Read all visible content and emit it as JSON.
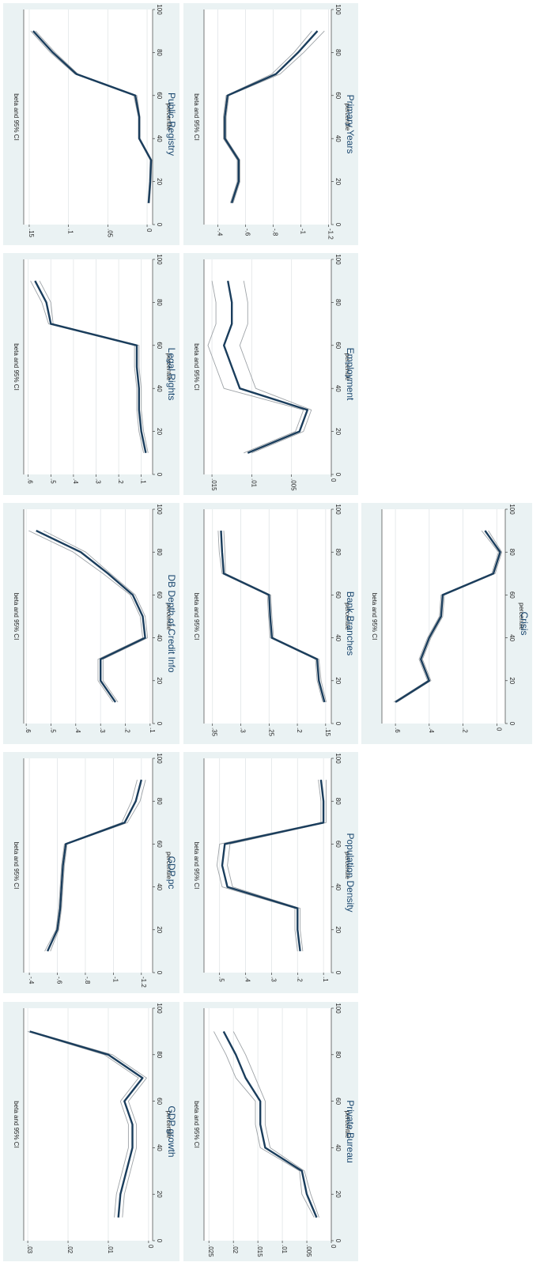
{
  "chart_data": [
    {
      "type": "line",
      "title": "GDP growth",
      "xlabel": "percentile",
      "ylabel": "beta and 95% CI",
      "x": [
        10,
        20,
        30,
        40,
        50,
        60,
        70,
        80,
        90
      ],
      "xlim": [
        0,
        100
      ],
      "xticks": [
        0,
        20,
        40,
        60,
        80,
        100
      ],
      "ylim": [
        -0.001,
        0.031
      ],
      "yticks": [
        {
          "v": 0,
          "label": "0"
        },
        {
          "v": 0.01,
          "label": ".01"
        },
        {
          "v": 0.02,
          "label": ".02"
        },
        {
          "v": 0.03,
          "label": ".03"
        }
      ],
      "series": [
        {
          "role": "estimate",
          "values": [
            0.0075,
            0.007,
            0.0055,
            0.004,
            0.004,
            0.006,
            0.0015,
            0.01,
            0.0295
          ]
        },
        {
          "role": "ci_upper",
          "values": [
            0.0085,
            0.008,
            0.0065,
            0.005,
            0.005,
            0.007,
            0.0025,
            0.011,
            0.03
          ]
        },
        {
          "role": "ci_lower",
          "values": [
            0.0065,
            0.006,
            0.0045,
            0.003,
            0.003,
            0.005,
            0.0005,
            0.009,
            0.029
          ]
        }
      ]
    },
    {
      "type": "line",
      "title": "GDP pc",
      "xlabel": "percentile",
      "ylabel": "beta and 95% CI",
      "x": [
        10,
        20,
        30,
        40,
        50,
        60,
        70,
        80,
        90
      ],
      "xlim": [
        0,
        100
      ],
      "xticks": [
        0,
        20,
        40,
        60,
        80,
        100
      ],
      "ylim": [
        -1.28,
        -0.36
      ],
      "yticks": [
        {
          "v": -0.4,
          "label": "-.4"
        },
        {
          "v": -0.6,
          "label": "-.6"
        },
        {
          "v": -0.8,
          "label": "-.8"
        },
        {
          "v": -1,
          "label": "-1"
        },
        {
          "v": -1.2,
          "label": "-1.2"
        }
      ],
      "series": [
        {
          "role": "estimate",
          "values": [
            -0.53,
            -0.6,
            -0.62,
            -0.63,
            -0.64,
            -0.66,
            -1.08,
            -1.16,
            -1.2
          ]
        },
        {
          "role": "ci_upper",
          "values": [
            -0.51,
            -0.59,
            -0.61,
            -0.62,
            -0.63,
            -0.65,
            -1.06,
            -1.13,
            -1.17
          ]
        },
        {
          "role": "ci_lower",
          "values": [
            -0.55,
            -0.61,
            -0.63,
            -0.64,
            -0.65,
            -0.67,
            -1.1,
            -1.19,
            -1.23
          ]
        }
      ]
    },
    {
      "type": "line",
      "title": "DB Depth of Credit Info",
      "xlabel": "percentile",
      "ylabel": "beta and 95% CI",
      "x": [
        10,
        20,
        30,
        40,
        50,
        60,
        70,
        80,
        90
      ],
      "xlim": [
        0,
        100
      ],
      "xticks": [
        0,
        20,
        40,
        60,
        80,
        100
      ],
      "ylim": [
        0.09,
        0.61
      ],
      "yticks": [
        {
          "v": 0.1,
          "label": ".1"
        },
        {
          "v": 0.2,
          "label": ".2"
        },
        {
          "v": 0.3,
          "label": ".3"
        },
        {
          "v": 0.4,
          "label": ".4"
        },
        {
          "v": 0.5,
          "label": ".5"
        },
        {
          "v": 0.6,
          "label": ".6"
        }
      ],
      "series": [
        {
          "role": "estimate",
          "values": [
            0.24,
            0.3,
            0.3,
            0.12,
            0.13,
            0.17,
            0.27,
            0.38,
            0.56
          ]
        },
        {
          "role": "ci_upper",
          "values": [
            0.25,
            0.31,
            0.31,
            0.13,
            0.14,
            0.18,
            0.29,
            0.41,
            0.59
          ]
        },
        {
          "role": "ci_lower",
          "values": [
            0.23,
            0.29,
            0.29,
            0.11,
            0.12,
            0.16,
            0.26,
            0.36,
            0.53
          ]
        }
      ]
    },
    {
      "type": "line",
      "title": "Legal Rights",
      "xlabel": "percentile",
      "ylabel": "beta and 95% CI",
      "x": [
        10,
        20,
        30,
        40,
        50,
        60,
        70,
        80,
        90
      ],
      "xlim": [
        0,
        100
      ],
      "xticks": [
        0,
        20,
        40,
        60,
        80,
        100
      ],
      "ylim": [
        0.05,
        0.62
      ],
      "yticks": [
        {
          "v": 0.1,
          "label": ".1"
        },
        {
          "v": 0.2,
          "label": ".2"
        },
        {
          "v": 0.3,
          "label": ".3"
        },
        {
          "v": 0.4,
          "label": ".4"
        },
        {
          "v": 0.5,
          "label": ".5"
        },
        {
          "v": 0.6,
          "label": ".6"
        }
      ],
      "series": [
        {
          "role": "estimate",
          "values": [
            0.08,
            0.1,
            0.11,
            0.11,
            0.12,
            0.12,
            0.5,
            0.52,
            0.57
          ]
        },
        {
          "role": "ci_upper",
          "values": [
            0.09,
            0.11,
            0.12,
            0.12,
            0.13,
            0.13,
            0.51,
            0.54,
            0.59
          ]
        },
        {
          "role": "ci_lower",
          "values": [
            0.07,
            0.09,
            0.1,
            0.1,
            0.11,
            0.11,
            0.49,
            0.5,
            0.55
          ]
        }
      ]
    },
    {
      "type": "line",
      "title": "Public Registry",
      "xlabel": "percentile",
      "ylabel": "beta and 95% CI",
      "x": [
        10,
        20,
        30,
        40,
        50,
        60,
        70,
        80,
        90
      ],
      "xlim": [
        0,
        100
      ],
      "xticks": [
        0,
        20,
        40,
        60,
        80,
        100
      ],
      "ylim": [
        -0.007,
        0.157
      ],
      "yticks": [
        {
          "v": 0,
          "label": "0"
        },
        {
          "v": 0.05,
          "label": ".05"
        },
        {
          "v": 0.1,
          "label": ".1"
        },
        {
          "v": 0.15,
          "label": ".15"
        }
      ],
      "series": [
        {
          "role": "estimate",
          "values": [
            -0.002,
            -0.004,
            -0.005,
            0.01,
            0.01,
            0.015,
            0.09,
            0.12,
            0.145
          ]
        },
        {
          "role": "ci_upper",
          "values": [
            -0.001,
            -0.003,
            -0.004,
            0.011,
            0.011,
            0.017,
            0.092,
            0.123,
            0.148
          ]
        },
        {
          "role": "ci_lower",
          "values": [
            -0.003,
            -0.005,
            -0.006,
            0.009,
            0.009,
            0.013,
            0.088,
            0.117,
            0.142
          ]
        }
      ]
    },
    {
      "type": "line",
      "title": "Private Bureau",
      "xlabel": "percentile",
      "ylabel": "beta and 95% CI",
      "x": [
        10,
        20,
        30,
        40,
        50,
        60,
        70,
        80,
        90
      ],
      "xlim": [
        0,
        100
      ],
      "xticks": [
        0,
        20,
        40,
        60,
        80,
        100
      ],
      "ylim": [
        0,
        0.026
      ],
      "yticks": [
        {
          "v": 0,
          "label": "0"
        },
        {
          "v": 0.005,
          "label": ".005"
        },
        {
          "v": 0.01,
          "label": ".01"
        },
        {
          "v": 0.015,
          "label": ".015"
        },
        {
          "v": 0.02,
          "label": ".02"
        },
        {
          "v": 0.025,
          "label": ".025"
        }
      ],
      "series": [
        {
          "role": "estimate",
          "values": [
            0.003,
            0.005,
            0.006,
            0.0135,
            0.0145,
            0.0145,
            0.0175,
            0.0195,
            0.022
          ]
        },
        {
          "role": "ci_upper",
          "values": [
            0.0035,
            0.006,
            0.0065,
            0.0145,
            0.0155,
            0.0155,
            0.0195,
            0.0215,
            0.024
          ]
        },
        {
          "role": "ci_lower",
          "values": [
            0.0025,
            0.0042,
            0.0055,
            0.0125,
            0.0135,
            0.0135,
            0.0155,
            0.0175,
            0.02
          ]
        }
      ]
    },
    {
      "type": "line",
      "title": "Population Density",
      "xlabel": "percentile",
      "ylabel": "beta and 95% CI",
      "x": [
        10,
        20,
        30,
        40,
        50,
        60,
        70,
        80,
        90
      ],
      "xlim": [
        0,
        100
      ],
      "xticks": [
        0,
        20,
        40,
        60,
        80,
        100
      ],
      "ylim": [
        0.07,
        0.56
      ],
      "yticks": [
        {
          "v": 0.1,
          "label": ".1"
        },
        {
          "v": 0.2,
          "label": ".2"
        },
        {
          "v": 0.3,
          "label": ".3"
        },
        {
          "v": 0.4,
          "label": ".4"
        },
        {
          "v": 0.5,
          "label": ".5"
        }
      ],
      "series": [
        {
          "role": "estimate",
          "values": [
            0.19,
            0.2,
            0.2,
            0.47,
            0.49,
            0.48,
            0.1,
            0.1,
            0.11
          ]
        },
        {
          "role": "ci_upper",
          "values": [
            0.2,
            0.21,
            0.21,
            0.49,
            0.51,
            0.5,
            0.11,
            0.11,
            0.12
          ]
        },
        {
          "role": "ci_lower",
          "values": [
            0.18,
            0.19,
            0.19,
            0.45,
            0.47,
            0.46,
            0.09,
            0.09,
            0.09
          ]
        }
      ]
    },
    {
      "type": "line",
      "title": "Bank Branches",
      "xlabel": "percentile",
      "ylabel": "beta and 95% CI",
      "x": [
        10,
        20,
        30,
        40,
        50,
        60,
        70,
        80,
        90
      ],
      "xlim": [
        0,
        100
      ],
      "xticks": [
        0,
        20,
        40,
        60,
        80,
        100
      ],
      "ylim": [
        0.14,
        0.365
      ],
      "yticks": [
        {
          "v": 0.15,
          "label": ".15"
        },
        {
          "v": 0.2,
          "label": ".2"
        },
        {
          "v": 0.25,
          "label": ".25"
        },
        {
          "v": 0.3,
          "label": ".3"
        },
        {
          "v": 0.35,
          "label": ".35"
        }
      ],
      "series": [
        {
          "role": "estimate",
          "values": [
            0.152,
            0.162,
            0.165,
            0.245,
            0.248,
            0.25,
            0.33,
            0.333,
            0.335
          ]
        },
        {
          "role": "ci_upper",
          "values": [
            0.155,
            0.165,
            0.168,
            0.248,
            0.251,
            0.253,
            0.333,
            0.338,
            0.34
          ]
        },
        {
          "role": "ci_lower",
          "values": [
            0.149,
            0.158,
            0.162,
            0.242,
            0.245,
            0.247,
            0.327,
            0.328,
            0.33
          ]
        }
      ]
    },
    {
      "type": "line",
      "title": "Employment",
      "xlabel": "percentile",
      "ylabel": "beta and 95% CI",
      "x": [
        10,
        20,
        30,
        40,
        50,
        60,
        70,
        80,
        90
      ],
      "xlim": [
        0,
        100
      ],
      "xticks": [
        0,
        20,
        40,
        60,
        80,
        100
      ],
      "ylim": [
        0,
        0.016
      ],
      "yticks": [
        {
          "v": 0,
          "label": "0"
        },
        {
          "v": 0.005,
          "label": ".005"
        },
        {
          "v": 0.01,
          "label": ".01"
        },
        {
          "v": 0.015,
          "label": ".015"
        }
      ],
      "series": [
        {
          "role": "estimate",
          "values": [
            0.0105,
            0.004,
            0.003,
            0.0115,
            0.0125,
            0.0135,
            0.0125,
            0.0125,
            0.013
          ]
        },
        {
          "role": "ci_upper",
          "values": [
            0.011,
            0.0045,
            0.0035,
            0.0135,
            0.0145,
            0.0155,
            0.0145,
            0.0145,
            0.015
          ]
        },
        {
          "role": "ci_lower",
          "values": [
            0.01,
            0.0035,
            0.0025,
            0.0095,
            0.0105,
            0.0115,
            0.0105,
            0.0105,
            0.011
          ]
        }
      ]
    },
    {
      "type": "line",
      "title": "Primary Years",
      "xlabel": "percentile",
      "ylabel": "beta and 95% CI",
      "x": [
        10,
        20,
        30,
        40,
        50,
        60,
        70,
        80,
        90
      ],
      "xlim": [
        0,
        100
      ],
      "xticks": [
        0,
        20,
        40,
        60,
        80,
        100
      ],
      "ylim": [
        -1.22,
        -0.3
      ],
      "yticks": [
        {
          "v": -0.4,
          "label": "-.4"
        },
        {
          "v": -0.6,
          "label": "-.6"
        },
        {
          "v": -0.8,
          "label": "-.8"
        },
        {
          "v": -1,
          "label": "-1"
        },
        {
          "v": -1.2,
          "label": "-1.2"
        }
      ],
      "series": [
        {
          "role": "estimate",
          "values": [
            -0.5,
            -0.55,
            -0.55,
            -0.45,
            -0.45,
            -0.47,
            -0.82,
            -0.98,
            -1.12
          ]
        },
        {
          "role": "ci_upper",
          "values": [
            -0.49,
            -0.54,
            -0.54,
            -0.44,
            -0.44,
            -0.46,
            -0.79,
            -0.95,
            -1.08
          ]
        },
        {
          "role": "ci_lower",
          "values": [
            -0.51,
            -0.56,
            -0.56,
            -0.46,
            -0.46,
            -0.48,
            -0.85,
            -1.02,
            -1.17
          ]
        }
      ]
    },
    {
      "type": "line",
      "title": "Crisis",
      "xlabel": "percentile",
      "ylabel": "beta and 95% CI",
      "x": [
        10,
        20,
        30,
        40,
        50,
        60,
        70,
        80,
        90
      ],
      "xlim": [
        0,
        100
      ],
      "xticks": [
        0,
        20,
        40,
        60,
        80,
        100
      ],
      "ylim": [
        -0.05,
        0.68
      ],
      "yticks": [
        {
          "v": 0,
          "label": "0"
        },
        {
          "v": 0.2,
          "label": ".2"
        },
        {
          "v": 0.4,
          "label": ".4"
        },
        {
          "v": 0.6,
          "label": ".6"
        }
      ],
      "series": [
        {
          "role": "estimate",
          "values": [
            0.6,
            0.4,
            0.45,
            0.4,
            0.33,
            0.32,
            0.02,
            -0.02,
            0.07
          ]
        },
        {
          "role": "ci_upper",
          "values": [
            0.61,
            0.41,
            0.46,
            0.41,
            0.34,
            0.33,
            0.03,
            -0.01,
            0.09
          ]
        },
        {
          "role": "ci_lower",
          "values": [
            0.59,
            0.39,
            0.44,
            0.39,
            0.32,
            0.31,
            0.01,
            -0.03,
            0.05
          ]
        }
      ]
    }
  ]
}
